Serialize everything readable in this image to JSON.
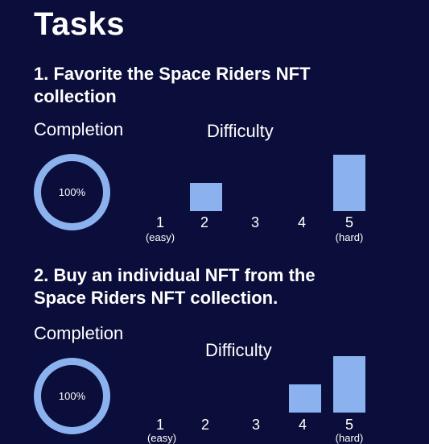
{
  "page": {
    "title": "Tasks"
  },
  "tasks": [
    {
      "title": "1. Favorite the Space Riders NFT collection",
      "completion_label": "Completion",
      "completion_value": "100%",
      "completion_fraction": 1.0,
      "difficulty_label": "Difficulty",
      "difficulty_levels": [
        {
          "label": "1",
          "sub": "(easy)",
          "value": 0
        },
        {
          "label": "2",
          "sub": "",
          "value": 0.5
        },
        {
          "label": "3",
          "sub": "",
          "value": 0
        },
        {
          "label": "4",
          "sub": "",
          "value": 0
        },
        {
          "label": "5",
          "sub": "(hard)",
          "value": 1.0
        }
      ]
    },
    {
      "title": "2. Buy an individual NFT from the Space Riders NFT collection.",
      "completion_label": "Completion",
      "completion_value": "100%",
      "completion_fraction": 1.0,
      "difficulty_label": "Difficulty",
      "difficulty_levels": [
        {
          "label": "1",
          "sub": "(easy)",
          "value": 0
        },
        {
          "label": "2",
          "sub": "",
          "value": 0
        },
        {
          "label": "3",
          "sub": "",
          "value": 0
        },
        {
          "label": "4",
          "sub": "",
          "value": 0.5
        },
        {
          "label": "5",
          "sub": "(hard)",
          "value": 1.0
        }
      ]
    }
  ],
  "colors": {
    "background": "#0b0d3a",
    "accent": "#8bb2ef",
    "text": "#ffffff"
  }
}
